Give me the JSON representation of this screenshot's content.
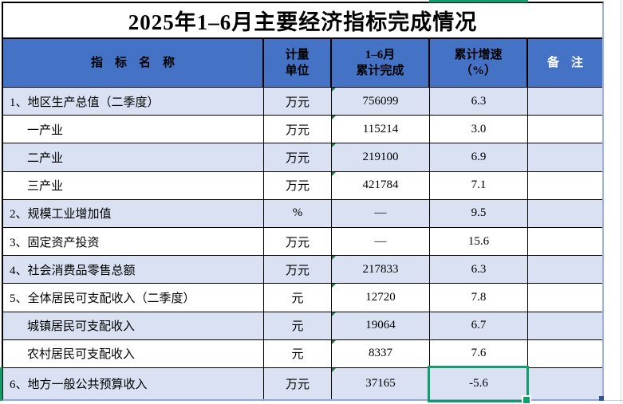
{
  "title": "2025年1–6月主要经济指标完成情况",
  "table": {
    "headers": {
      "indicator": "指　标　名　称",
      "unit_top": "计量",
      "unit_bottom": "单位",
      "value_top": "1–6月",
      "value_bottom": "累计完成",
      "growth_top": "累计增速",
      "growth_bottom": "（%）",
      "remark": "备　注"
    },
    "rows": [
      {
        "label": "1、地区生产总值（二季度）",
        "unit": "万元",
        "value": "756099",
        "growth": "6.3",
        "remark": "",
        "indent": false,
        "flag": true
      },
      {
        "label": "一产业",
        "unit": "万元",
        "value": "115214",
        "growth": "3.0",
        "remark": "",
        "indent": true,
        "flag": true
      },
      {
        "label": "二产业",
        "unit": "万元",
        "value": "219100",
        "growth": "6.9",
        "remark": "",
        "indent": true,
        "flag": true
      },
      {
        "label": "三产业",
        "unit": "万元",
        "value": "421784",
        "growth": "7.1",
        "remark": "",
        "indent": true,
        "flag": true
      },
      {
        "label": "2、规模工业增加值",
        "unit": "%",
        "value": "—",
        "growth": "9.5",
        "remark": "",
        "indent": false,
        "flag": false
      },
      {
        "label": "3、固定资产投资",
        "unit": "万元",
        "value": "—",
        "growth": "15.6",
        "remark": "",
        "indent": false,
        "flag": false
      },
      {
        "label": "4、社会消费品零售总额",
        "unit": "万元",
        "value": "217833",
        "growth": "6.3",
        "remark": "",
        "indent": false,
        "flag": true
      },
      {
        "label": "5、全体居民可支配收入（二季度）",
        "unit": "元",
        "value": "12720",
        "growth": "7.8",
        "remark": "",
        "indent": false,
        "flag": true
      },
      {
        "label": "城镇居民可支配收入",
        "unit": "元",
        "value": "19064",
        "growth": "6.7",
        "remark": "",
        "indent": true,
        "flag": true
      },
      {
        "label": "农村居民可支配收入",
        "unit": "元",
        "value": "8337",
        "growth": "7.6",
        "remark": "",
        "indent": true,
        "flag": true
      },
      {
        "label": "6、地方一般公共预算收入",
        "unit": "万元",
        "value": "37165",
        "growth": "-5.6",
        "remark": "",
        "indent": false,
        "flag": true
      }
    ]
  },
  "selection": {
    "selected_cell_value": "-5.6",
    "selected_row_label": "6、地方一般公共预算收入",
    "selected_column": "累计增速（%）"
  },
  "colors": {
    "header_bg": "#4472c4",
    "stripe_bg": "#d9e1f2",
    "selection_green": "#0e9d6b",
    "flag_triangle_green": "#217346",
    "table_outer_light_border": "#8ea9db",
    "used_range_marker_blue": "#2f5597"
  }
}
